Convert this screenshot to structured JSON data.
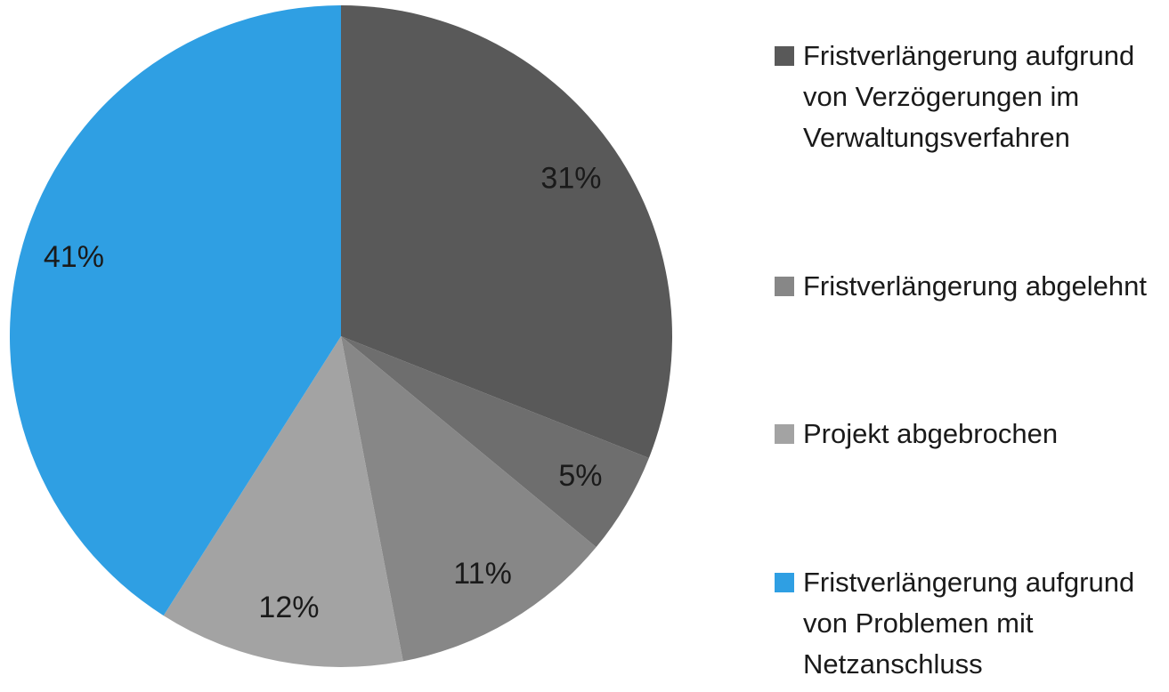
{
  "chart_data": {
    "type": "pie",
    "categories": [
      "Fristverlängerung aufgrund von Verzögerungen im Verwaltungsverfahren",
      null,
      "Fristverlängerung abgelehnt",
      "Projekt abgebrochen",
      "Fristverlängerung aufgrund von Problemen mit Netzanschluss"
    ],
    "values": [
      31,
      5,
      11,
      12,
      41
    ],
    "value_labels": [
      "31%",
      "5%",
      "11%",
      "12%",
      "41%"
    ],
    "colors": [
      "#595959",
      "#6e6e6e",
      "#878787",
      "#a3a3a3",
      "#2f9fe3"
    ],
    "legend": "right"
  }
}
